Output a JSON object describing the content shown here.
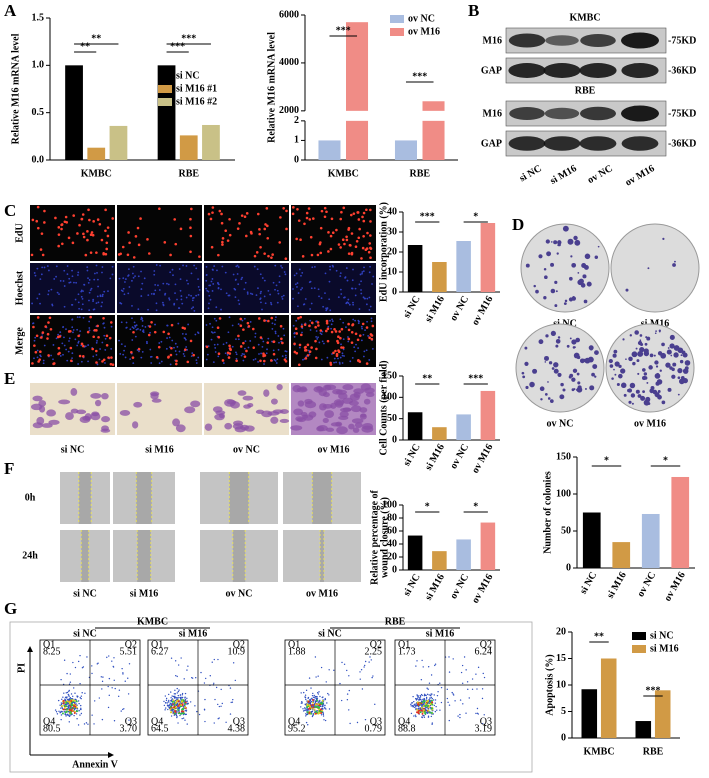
{
  "panel_labels": [
    "A",
    "B",
    "C",
    "D",
    "E",
    "F",
    "G"
  ],
  "blot": {
    "cell_lines": [
      "KMBC",
      "RBE"
    ],
    "proteins": [
      "M16",
      "GAP"
    ],
    "sizes": [
      "-75KD",
      "-36KD"
    ],
    "lanes": [
      "si NC",
      "si M16",
      "ov NC",
      "ov M16"
    ]
  },
  "edu_rows": [
    "EdU",
    "Hoechst",
    "Merge"
  ],
  "groups": [
    "si NC",
    "si M16",
    "ov NC",
    "ov M16"
  ],
  "wound_times": [
    "0h",
    "24h"
  ],
  "flow": {
    "cell_lines": [
      "KMBC",
      "RBE"
    ],
    "groups": [
      "si NC",
      "si M16",
      "si NC",
      "si M16"
    ],
    "x_label": "Annexin V",
    "y_label": "PI",
    "quadrant_names": [
      "Q1",
      "Q2",
      "Q3",
      "Q4"
    ],
    "quadrants": [
      [
        "8.25",
        "5.51",
        "3.70",
        "80.5"
      ],
      [
        "6.27",
        "10.9",
        "4.38",
        "64.5"
      ],
      [
        "1.88",
        "2.25",
        "0.79",
        "95.2"
      ],
      [
        "1.73",
        "6.24",
        "3.19",
        "88.8"
      ]
    ]
  },
  "chart_data": [
    {
      "type": "bar",
      "y_label": "Relative M16 mRNA level",
      "categories": [
        "KMBC",
        "RBE"
      ],
      "series": [
        {
          "name": "si NC",
          "color": "#000000",
          "values": [
            1.0,
            1.0
          ]
        },
        {
          "name": "si M16 #1",
          "color": "#d19a45",
          "values": [
            0.13,
            0.26
          ]
        },
        {
          "name": "si M16 #2",
          "color": "#c9c187",
          "values": [
            0.36,
            0.37
          ]
        }
      ],
      "ylim": [
        0,
        1.5
      ],
      "yticks": [
        {
          "value": 0,
          "label": "0.0"
        },
        {
          "value": 0.5,
          "label": "0.5"
        },
        {
          "value": 1,
          "label": "1.0"
        },
        {
          "value": 1.5,
          "label": "1.5"
        }
      ],
      "annotations": [
        "**",
        "**",
        "***",
        "***"
      ]
    },
    {
      "type": "bar",
      "y_label": "Relative M16 mRNA level",
      "categories": [
        "KMBC",
        "RBE"
      ],
      "series": [
        {
          "name": "ov NC",
          "color": "#a9bde0",
          "values": [
            1,
            1
          ]
        },
        {
          "name": "ov M16",
          "color": "#f08c86",
          "values": [
            5700,
            2400
          ]
        }
      ],
      "ylim": [
        0,
        6000
      ],
      "axis_break": [
        2,
        2000
      ],
      "yticks": [
        0,
        1,
        2,
        2000,
        4000,
        6000
      ],
      "annotations": [
        "***",
        "***"
      ]
    },
    {
      "type": "bar",
      "y_label": "EdU incorporation (%)",
      "categories": [
        "si NC",
        "si M16",
        "ov NC",
        "ov M16"
      ],
      "values": [
        23.5,
        15,
        25.5,
        34.5
      ],
      "colors": [
        "#000000",
        "#d19a45",
        "#a9bde0",
        "#f08c86"
      ],
      "ylim": [
        0,
        40
      ],
      "yticks": [
        0,
        10,
        20,
        30,
        40
      ],
      "annotations": [
        "***",
        "*"
      ]
    },
    {
      "type": "bar",
      "y_label": "Cell Counts (per field)",
      "categories": [
        "si NC",
        "si M16",
        "ov NC",
        "ov M16"
      ],
      "values": [
        65,
        30,
        60,
        115
      ],
      "colors": [
        "#000000",
        "#d19a45",
        "#a9bde0",
        "#f08c86"
      ],
      "ylim": [
        0,
        150
      ],
      "yticks": [
        0,
        50,
        100,
        150
      ],
      "annotations": [
        "**",
        "***"
      ]
    },
    {
      "type": "bar",
      "y_label": [
        "Relative percentage of",
        "wound closure (%)"
      ],
      "categories": [
        "si NC",
        "si M16",
        "ov NC",
        "ov M16"
      ],
      "values": [
        53,
        29,
        47,
        73
      ],
      "colors": [
        "#000000",
        "#d19a45",
        "#a9bde0",
        "#f08c86"
      ],
      "ylim": [
        0,
        100
      ],
      "yticks": [
        0,
        20,
        40,
        60,
        80,
        100
      ],
      "annotations": [
        "*",
        "*"
      ]
    },
    {
      "type": "bar",
      "y_label": "Number of colonies",
      "categories": [
        "si NC",
        "si M16",
        "ov NC",
        "ov M16"
      ],
      "values": [
        75,
        35,
        73,
        123
      ],
      "colors": [
        "#000000",
        "#d19a45",
        "#a9bde0",
        "#f08c86"
      ],
      "ylim": [
        0,
        150
      ],
      "yticks": [
        0,
        50,
        100,
        150
      ],
      "annotations": [
        "*",
        "*"
      ]
    },
    {
      "type": "bar",
      "y_label": "Apoptosis (%)",
      "categories": [
        "KMBC",
        "RBE"
      ],
      "series": [
        {
          "name": "si NC",
          "color": "#000000",
          "values": [
            9.2,
            3.2
          ]
        },
        {
          "name": "si M16",
          "color": "#d19a45",
          "values": [
            15,
            9
          ]
        }
      ],
      "ylim": [
        0,
        20
      ],
      "yticks": [
        0,
        5,
        10,
        15,
        20
      ],
      "annotations": [
        "**",
        "***"
      ]
    }
  ]
}
